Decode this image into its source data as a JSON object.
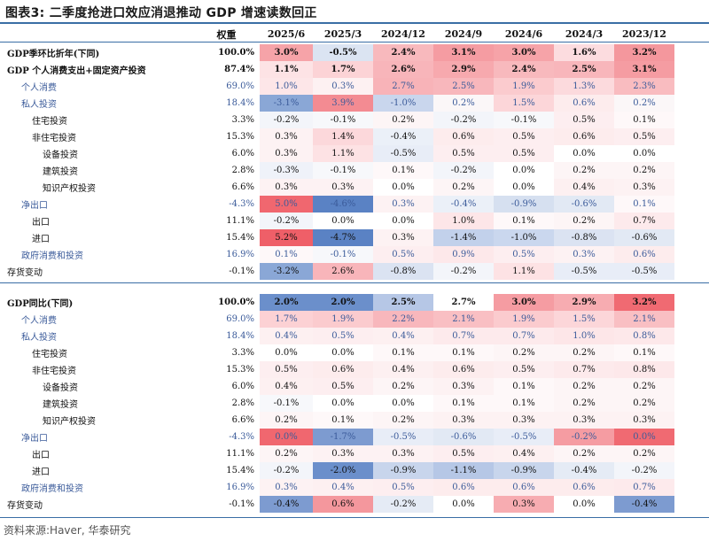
{
  "title": "图表3:  二季度抢进口效应消退推动 GDP 增速读数回正",
  "columns": [
    "权重",
    "2025/6",
    "2025/3",
    "2024/12",
    "2024/9",
    "2024/6",
    "2024/3",
    "2023/12"
  ],
  "section_a": [
    {
      "label": "GDP季环比折年(下同)",
      "indent": 0,
      "style": "bold",
      "weight": "100.0%",
      "values": [
        "3.0%",
        "-0.5%",
        "2.4%",
        "3.1%",
        "3.0%",
        "1.6%",
        "3.2%"
      ],
      "colors": [
        "#f6a3a8",
        "#dbe4f2",
        "#f8b9bd",
        "#f59ca2",
        "#f6a3a8",
        "#fcdcdf",
        "#f4979d"
      ]
    },
    {
      "label": "GDP 个人消费支出+固定资产投资",
      "indent": 0,
      "style": "bold",
      "weight": "87.4%",
      "values": [
        "1.1%",
        "1.7%",
        "2.6%",
        "2.9%",
        "2.4%",
        "2.5%",
        "3.1%"
      ],
      "colors": [
        "#fde3e5",
        "#fcd3d6",
        "#f8b5ba",
        "#f7a9ae",
        "#f8b9bd",
        "#f8b6bb",
        "#f59ca2"
      ]
    },
    {
      "label": "个人消费",
      "indent": 1,
      "style": "blue",
      "weight": "69.0%",
      "values": [
        "1.0%",
        "0.3%",
        "2.7%",
        "2.5%",
        "1.9%",
        "1.3%",
        "2.3%"
      ],
      "colors": [
        "#fde6e8",
        "#fdf1f2",
        "#f8b3b8",
        "#f8b7bc",
        "#fbcbce",
        "#fcdadd",
        "#f9bcc0"
      ]
    },
    {
      "label": "私人投资",
      "indent": 1,
      "style": "blue",
      "weight": "18.4%",
      "values": [
        "-3.1%",
        "3.9%",
        "-1.0%",
        "0.2%",
        "1.5%",
        "0.6%",
        "0.2%"
      ],
      "colors": [
        "#8aa7d6",
        "#f38b92",
        "#c9d6ed",
        "#fbf7f8",
        "#fcd6d9",
        "#fdeced",
        "#fbf7f8"
      ]
    },
    {
      "label": "住宅投资",
      "indent": 2,
      "style": "",
      "weight": "3.3%",
      "values": [
        "-0.2%",
        "-0.1%",
        "0.2%",
        "-0.2%",
        "-0.1%",
        "0.5%",
        "0.1%"
      ],
      "colors": [
        "#f3f5fa",
        "#f7f8fb",
        "#fdf5f6",
        "#f3f5fa",
        "#f7f8fb",
        "#fdeef0",
        "#fef8f9"
      ]
    },
    {
      "label": "非住宅投资",
      "indent": 2,
      "style": "",
      "weight": "15.3%",
      "values": [
        "0.3%",
        "1.4%",
        "-0.4%",
        "0.6%",
        "0.5%",
        "0.6%",
        "0.5%"
      ],
      "colors": [
        "#fdf2f3",
        "#fcd8db",
        "#ebf0f8",
        "#fdeced",
        "#fdeef0",
        "#fdeced",
        "#fdeef0"
      ]
    },
    {
      "label": "设备投资",
      "indent": 3,
      "style": "",
      "weight": "6.0%",
      "values": [
        "0.3%",
        "1.1%",
        "-0.5%",
        "0.5%",
        "0.5%",
        "0.0%",
        "0.0%"
      ],
      "colors": [
        "#fdf2f3",
        "#fde2e4",
        "#e8edf7",
        "#fdeef0",
        "#fdeef0",
        "#ffffff",
        "#ffffff"
      ]
    },
    {
      "label": "建筑投资",
      "indent": 3,
      "style": "",
      "weight": "2.8%",
      "values": [
        "-0.3%",
        "-0.1%",
        "0.1%",
        "-0.2%",
        "0.0%",
        "0.2%",
        "0.2%"
      ],
      "colors": [
        "#eff2f9",
        "#f7f8fb",
        "#fef8f9",
        "#f3f5fa",
        "#ffffff",
        "#fdf5f6",
        "#fdf5f6"
      ]
    },
    {
      "label": "知识产权投资",
      "indent": 3,
      "style": "",
      "weight": "6.6%",
      "values": [
        "0.3%",
        "0.3%",
        "0.0%",
        "0.2%",
        "0.0%",
        "0.4%",
        "0.3%"
      ],
      "colors": [
        "#fdf2f3",
        "#fdf2f3",
        "#ffffff",
        "#fdf5f6",
        "#ffffff",
        "#fdf0f1",
        "#fdf2f3"
      ]
    },
    {
      "label": "净出口",
      "indent": 1,
      "style": "blue",
      "weight": "-4.3%",
      "values": [
        "5.0%",
        "-4.6%",
        "0.3%",
        "-0.4%",
        "-0.9%",
        "-0.6%",
        "0.1%"
      ],
      "colors": [
        "#f0676f",
        "#5a82c4",
        "#fdf2f3",
        "#ebf0f8",
        "#d6e0f0",
        "#e2e9f4",
        "#fef8f9"
      ]
    },
    {
      "label": "出口",
      "indent": 2,
      "style": "",
      "weight": "11.1%",
      "values": [
        "-0.2%",
        "0.0%",
        "0.0%",
        "1.0%",
        "0.1%",
        "0.2%",
        "0.7%"
      ],
      "colors": [
        "#f3f5fa",
        "#ffffff",
        "#ffffff",
        "#fde6e8",
        "#fef8f9",
        "#fdf5f6",
        "#fdeaec"
      ]
    },
    {
      "label": "进口",
      "indent": 2,
      "style": "",
      "weight": "15.4%",
      "values": [
        "5.2%",
        "-4.7%",
        "0.3%",
        "-1.4%",
        "-1.0%",
        "-0.8%",
        "-0.6%"
      ],
      "colors": [
        "#ef5f68",
        "#5a82c4",
        "#fdf2f3",
        "#c2d1eb",
        "#cad7ee",
        "#dbe3f2",
        "#e2e9f4"
      ]
    },
    {
      "label": "政府消费和投资",
      "indent": 1,
      "style": "blue",
      "weight": "16.9%",
      "values": [
        "0.1%",
        "-0.1%",
        "0.5%",
        "0.9%",
        "0.5%",
        "0.3%",
        "0.6%"
      ],
      "colors": [
        "#fef8f9",
        "#f7f8fb",
        "#fdeef0",
        "#fde8ea",
        "#fdeef0",
        "#fdf2f3",
        "#fdeced"
      ]
    },
    {
      "label": "存货变动",
      "indent": 0,
      "style": "",
      "weight": "-0.1%",
      "values": [
        "-3.2%",
        "2.6%",
        "-0.8%",
        "-0.2%",
        "1.1%",
        "-0.5%",
        "-0.5%"
      ],
      "colors": [
        "#8aa7d6",
        "#f8b5ba",
        "#dbe3f2",
        "#f3f5fa",
        "#fde2e4",
        "#e8edf7",
        "#e8edf7"
      ]
    }
  ],
  "section_b": [
    {
      "label": "GDP同比(下同)",
      "indent": 0,
      "style": "bold",
      "weight": "100.0%",
      "values": [
        "2.0%",
        "2.0%",
        "2.5%",
        "2.7%",
        "3.0%",
        "2.9%",
        "3.2%"
      ],
      "colors": [
        "#6b8fcb",
        "#6b8fcb",
        "#b6c7e6",
        "#ffffff",
        "#f59ca2",
        "#f7acb1",
        "#f06a72"
      ]
    },
    {
      "label": "个人消费",
      "indent": 1,
      "style": "blue",
      "weight": "69.0%",
      "values": [
        "1.7%",
        "1.9%",
        "2.2%",
        "2.1%",
        "1.9%",
        "1.5%",
        "2.1%"
      ],
      "colors": [
        "#fcd1d4",
        "#fbcbce",
        "#f8b7bc",
        "#f9bfc3",
        "#fbcbce",
        "#fcd6d9",
        "#f9bfc3"
      ]
    },
    {
      "label": "私人投资",
      "indent": 1,
      "style": "blue",
      "weight": "18.4%",
      "values": [
        "0.4%",
        "0.5%",
        "0.4%",
        "0.7%",
        "0.7%",
        "1.0%",
        "0.8%"
      ],
      "colors": [
        "#fdf0f1",
        "#fdeef0",
        "#fdf0f1",
        "#fdeaec",
        "#fdeaec",
        "#fde6e8",
        "#fde8ea"
      ]
    },
    {
      "label": "住宅投资",
      "indent": 2,
      "style": "",
      "weight": "3.3%",
      "values": [
        "0.0%",
        "0.0%",
        "0.1%",
        "0.1%",
        "0.2%",
        "0.2%",
        "0.1%"
      ],
      "colors": [
        "#ffffff",
        "#ffffff",
        "#fef8f9",
        "#fef8f9",
        "#fdf5f6",
        "#fdf5f6",
        "#fef8f9"
      ]
    },
    {
      "label": "非住宅投资",
      "indent": 2,
      "style": "",
      "weight": "15.3%",
      "values": [
        "0.5%",
        "0.6%",
        "0.4%",
        "0.6%",
        "0.5%",
        "0.7%",
        "0.8%"
      ],
      "colors": [
        "#fdeef0",
        "#fdeced",
        "#fdf0f1",
        "#fdeced",
        "#fdeef0",
        "#fdeaec",
        "#fde8ea"
      ]
    },
    {
      "label": "设备投资",
      "indent": 3,
      "style": "",
      "weight": "6.0%",
      "values": [
        "0.4%",
        "0.5%",
        "0.2%",
        "0.3%",
        "0.1%",
        "0.2%",
        "0.2%"
      ],
      "colors": [
        "#fdf0f1",
        "#fdeef0",
        "#fdf5f6",
        "#fdf2f3",
        "#fef8f9",
        "#fdf5f6",
        "#fdf5f6"
      ]
    },
    {
      "label": "建筑投资",
      "indent": 3,
      "style": "",
      "weight": "2.8%",
      "values": [
        "-0.1%",
        "0.0%",
        "0.0%",
        "0.1%",
        "0.1%",
        "0.2%",
        "0.2%"
      ],
      "colors": [
        "#f7f8fb",
        "#ffffff",
        "#ffffff",
        "#fef8f9",
        "#fef8f9",
        "#fdf5f6",
        "#fdf5f6"
      ]
    },
    {
      "label": "知识产权投资",
      "indent": 3,
      "style": "",
      "weight": "6.6%",
      "values": [
        "0.2%",
        "0.1%",
        "0.2%",
        "0.3%",
        "0.3%",
        "0.3%",
        "0.3%"
      ],
      "colors": [
        "#fdf5f6",
        "#fef8f9",
        "#fdf5f6",
        "#fdf2f3",
        "#fdf2f3",
        "#fdf2f3",
        "#fdf2f3"
      ]
    },
    {
      "label": "净出口",
      "indent": 1,
      "style": "blue",
      "weight": "-4.3%",
      "values": [
        "0.0%",
        "-1.7%",
        "-0.5%",
        "-0.6%",
        "-0.5%",
        "-0.2%",
        "0.0%"
      ],
      "colors": [
        "#f0676f",
        "#7d9bd0",
        "#e8edf7",
        "#e2e9f4",
        "#e8edf7",
        "#f59ca2",
        "#f06a72"
      ]
    },
    {
      "label": "出口",
      "indent": 2,
      "style": "",
      "weight": "11.1%",
      "values": [
        "0.2%",
        "0.3%",
        "0.3%",
        "0.5%",
        "0.4%",
        "0.2%",
        "0.2%"
      ],
      "colors": [
        "#fdf5f6",
        "#fdf2f3",
        "#fdf2f3",
        "#fdeef0",
        "#fdf0f1",
        "#fdf5f6",
        "#fdf5f6"
      ]
    },
    {
      "label": "进口",
      "indent": 2,
      "style": "",
      "weight": "15.4%",
      "values": [
        "-0.2%",
        "-2.0%",
        "-0.9%",
        "-1.1%",
        "-0.9%",
        "-0.4%",
        "-0.2%"
      ],
      "colors": [
        "#f3f5fa",
        "#6b8fcb",
        "#c8d5ec",
        "#b6c7e6",
        "#c8d5ec",
        "#e5ebf5",
        "#f3f5fa"
      ]
    },
    {
      "label": "政府消费和投资",
      "indent": 1,
      "style": "blue",
      "weight": "16.9%",
      "values": [
        "0.3%",
        "0.4%",
        "0.5%",
        "0.6%",
        "0.6%",
        "0.6%",
        "0.7%"
      ],
      "colors": [
        "#fdf2f3",
        "#fdf0f1",
        "#fdeef0",
        "#fdeced",
        "#fdeced",
        "#fdeced",
        "#fdeaec"
      ]
    },
    {
      "label": "存货变动",
      "indent": 0,
      "style": "",
      "weight": "-0.1%",
      "values": [
        "-0.4%",
        "0.6%",
        "-0.2%",
        "0.0%",
        "0.3%",
        "0.0%",
        "-0.4%"
      ],
      "colors": [
        "#7d9bd0",
        "#f4979d",
        "#e5ebf5",
        "#ffffff",
        "#f7acb1",
        "#ffffff",
        "#7d9bd0"
      ]
    }
  ],
  "source": "资料来源:Haver, 华泰研究"
}
